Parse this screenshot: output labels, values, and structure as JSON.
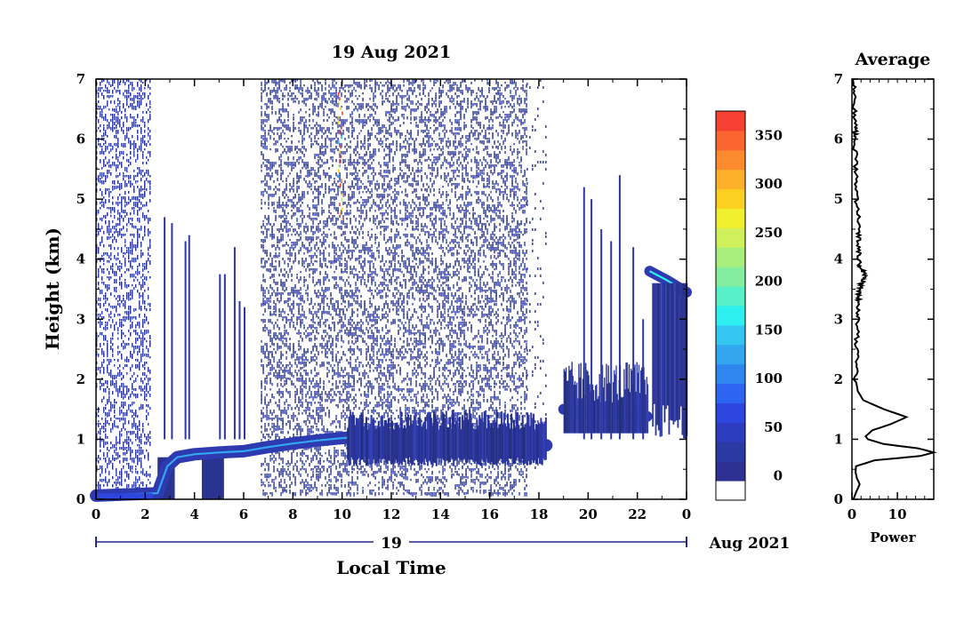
{
  "chart_data": [
    {
      "type": "heatmap",
      "title": "19 Aug 2021",
      "xlabel": "Local Time",
      "ylabel": "Height (km)",
      "xlim": [
        0,
        24
      ],
      "ylim": [
        0,
        7
      ],
      "x_tick_labels": [
        "0",
        "2",
        "4",
        "6",
        "8",
        "10",
        "12",
        "14",
        "16",
        "18",
        "20",
        "22",
        "0"
      ],
      "y_tick_labels": [
        "0",
        "1",
        "2",
        "3",
        "4",
        "5",
        "6",
        "7"
      ],
      "date_axis": {
        "day": "19",
        "month_year": "Aug 2021"
      },
      "colorbar": {
        "tick_labels": [
          "0",
          "50",
          "100",
          "150",
          "200",
          "250",
          "300",
          "350"
        ],
        "range": [
          -25,
          375
        ],
        "colors": [
          "#ffffff",
          "#2e3191",
          "#2b3aa3",
          "#2c3dbf",
          "#2e46e0",
          "#2d64f0",
          "#2f86ee",
          "#32a7f0",
          "#33c6f0",
          "#2ff0f0",
          "#58f0c8",
          "#84eea0",
          "#a8ee7c",
          "#cff05a",
          "#f0f02e",
          "#fcd020",
          "#fdb02a",
          "#fc8a2e",
          "#fa6530",
          "#f64033"
        ]
      },
      "features": {
        "noise_blocks_hours": [
          [
            0,
            2.2
          ],
          [
            6.7,
            17.5
          ]
        ],
        "sparse_noise_hours": [
          [
            17.5,
            18.3
          ]
        ],
        "mixed_layer_km": [
          [
            0,
            0.06
          ],
          [
            2.5,
            0.1
          ],
          [
            2.9,
            0.55
          ],
          [
            3.3,
            0.7
          ],
          [
            4.0,
            0.75
          ],
          [
            5.0,
            0.78
          ],
          [
            6.0,
            0.8
          ],
          [
            7.0,
            0.87
          ],
          [
            8.0,
            0.93
          ],
          [
            9.0,
            0.98
          ],
          [
            10.0,
            1.02
          ],
          [
            11.0,
            1.05
          ],
          [
            12.0,
            0.95
          ],
          [
            13.0,
            0.85
          ],
          [
            14.0,
            0.8
          ],
          [
            15.0,
            0.82
          ],
          [
            16.0,
            0.85
          ],
          [
            17.0,
            0.88
          ],
          [
            18.3,
            0.9
          ]
        ],
        "evening_layer_km": [
          [
            19.0,
            1.5
          ],
          [
            20.0,
            1.4
          ],
          [
            21.0,
            1.45
          ],
          [
            22.0,
            1.38
          ],
          [
            22.4,
            1.38
          ]
        ],
        "late_layer_km": [
          [
            22.5,
            3.8
          ],
          [
            23.2,
            3.65
          ],
          [
            24.0,
            3.45
          ]
        ],
        "dense_blocks": [
          [
            4.3,
            5.2,
            0,
            0.8
          ],
          [
            2.5,
            3.2,
            0,
            0.7
          ]
        ],
        "spikes": [
          [
            2.75,
            4.7
          ],
          [
            3.05,
            4.6
          ],
          [
            3.6,
            4.3
          ],
          [
            3.75,
            4.4
          ],
          [
            5.0,
            3.75
          ],
          [
            5.2,
            3.75
          ],
          [
            5.6,
            4.2
          ],
          [
            5.8,
            3.3
          ],
          [
            6.0,
            3.2
          ],
          [
            19.8,
            5.2
          ],
          [
            20.1,
            5.0
          ],
          [
            20.5,
            4.5
          ],
          [
            20.9,
            4.3
          ],
          [
            21.25,
            5.4
          ],
          [
            21.8,
            4.2
          ],
          [
            22.2,
            3.0
          ]
        ],
        "aerosol_streak_hours": [
          9.8,
          10.0
        ],
        "aerosol_streak_km": [
          4.7,
          6.8
        ]
      }
    },
    {
      "type": "line",
      "title": "Average",
      "xlabel": "Power",
      "ylabel": "",
      "xlim": [
        0,
        18
      ],
      "ylim": [
        0,
        7
      ],
      "x_tick_labels": [
        "0",
        "10"
      ],
      "y_tick_labels": [
        "0",
        "1",
        "2",
        "3",
        "4",
        "5",
        "6",
        "7"
      ],
      "series": [
        {
          "x": [
            0.3,
            1.1,
            1.7,
            1.1,
            0.8,
            0.9,
            5.0,
            15.0,
            18.0,
            14.5,
            7.0,
            3.5,
            3.0,
            4.5,
            8.5,
            12.0,
            7.0,
            2.5,
            1.3,
            0.8,
            1.1,
            1.2,
            1.5,
            1.6,
            2.2,
            2.8,
            1.6,
            1.4,
            1.5,
            1.1,
            0.9,
            0.6,
            0.8,
            0.5,
            0.3
          ],
          "y": [
            0.0,
            0.15,
            0.25,
            0.35,
            0.45,
            0.55,
            0.65,
            0.72,
            0.78,
            0.85,
            0.92,
            1.0,
            1.05,
            1.15,
            1.25,
            1.37,
            1.5,
            1.65,
            1.8,
            2.0,
            2.5,
            3.0,
            3.3,
            3.5,
            3.6,
            3.75,
            3.9,
            4.2,
            4.5,
            5.0,
            5.5,
            6.0,
            6.2,
            6.6,
            7.0
          ]
        }
      ]
    }
  ]
}
